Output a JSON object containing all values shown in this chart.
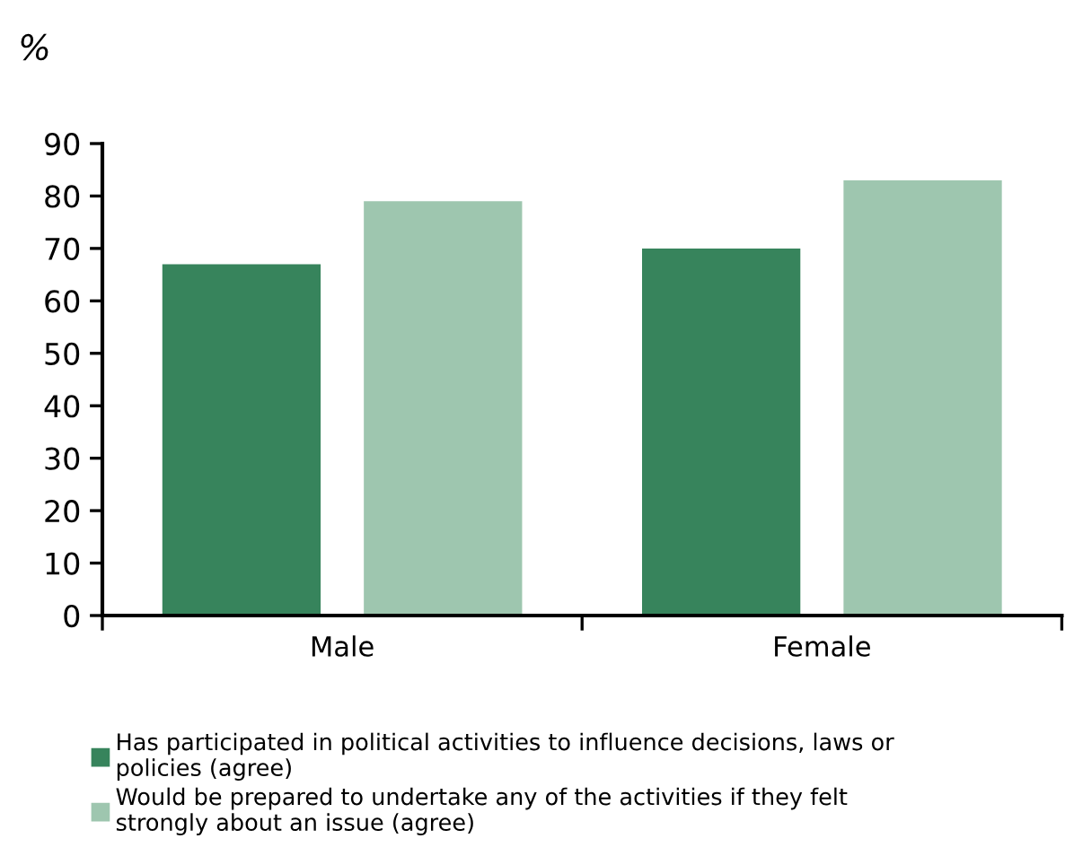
{
  "chart_data": {
    "type": "bar",
    "ylabel": "%",
    "categories": [
      "Male",
      "Female"
    ],
    "series": [
      {
        "name": "Has participated in political activities to influence decisions, laws or policies (agree)",
        "color": "#37845c",
        "values": [
          67,
          70
        ]
      },
      {
        "name": "Would be prepared to undertake any of the activities if they felt strongly about an issue (agree)",
        "color": "#9ec6af",
        "values": [
          79,
          83
        ]
      }
    ],
    "ylim": [
      0,
      90
    ],
    "yticks": [
      0,
      10,
      20,
      30,
      40,
      50,
      60,
      70,
      80,
      90
    ],
    "grid": false,
    "legend": "bottom"
  }
}
